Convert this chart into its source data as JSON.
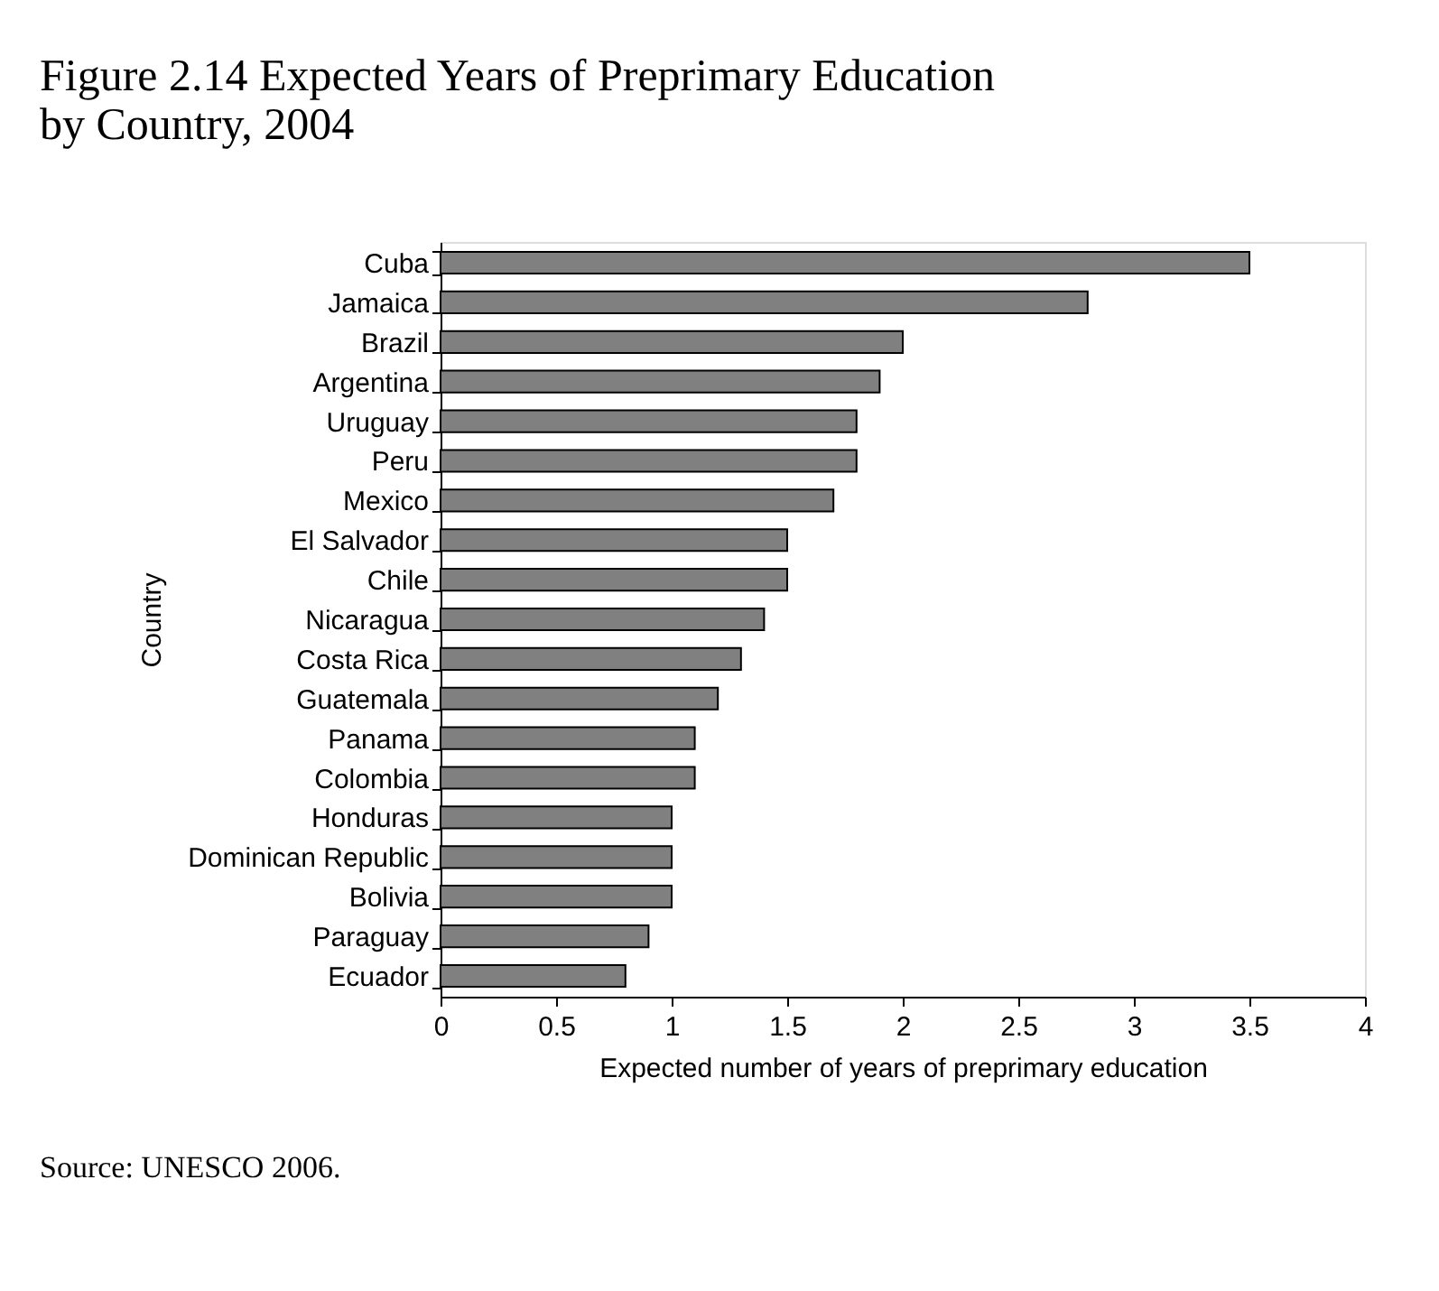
{
  "chart_data": {
    "type": "bar",
    "orientation": "horizontal",
    "title": "Figure 2.14 Expected Years of Preprimary Education by Country, 2004",
    "xlabel": "Expected number of years of preprimary education",
    "ylabel": "Country",
    "categories": [
      "Cuba",
      "Jamaica",
      "Brazil",
      "Argentina",
      "Uruguay",
      "Peru",
      "Mexico",
      "El Salvador",
      "Chile",
      "Nicaragua",
      "Costa Rica",
      "Guatemala",
      "Panama",
      "Colombia",
      "Honduras",
      "Dominican Republic",
      "Bolivia",
      "Paraguay",
      "Ecuador"
    ],
    "values": [
      3.5,
      2.8,
      2.0,
      1.9,
      1.8,
      1.8,
      1.7,
      1.5,
      1.5,
      1.4,
      1.3,
      1.2,
      1.1,
      1.1,
      1.0,
      1.0,
      1.0,
      0.9,
      0.8
    ],
    "color": "#808080",
    "xlim": [
      0,
      4
    ],
    "xticks": [
      0,
      0.5,
      1,
      1.5,
      2,
      2.5,
      3,
      3.5,
      4
    ],
    "grid": false,
    "annotations": [
      "Source: UNESCO 2006."
    ]
  }
}
